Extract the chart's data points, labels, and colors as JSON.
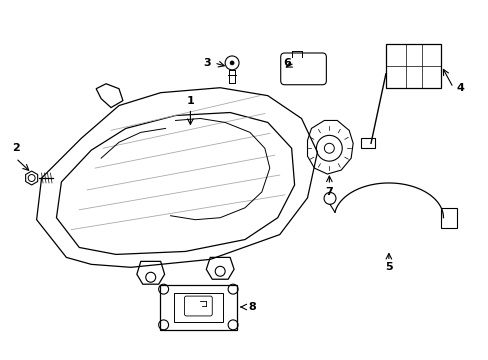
{
  "bg_color": "#ffffff",
  "line_color": "#000000",
  "gray_color": "#aaaaaa",
  "figsize": [
    4.89,
    3.6
  ],
  "dpi": 100
}
